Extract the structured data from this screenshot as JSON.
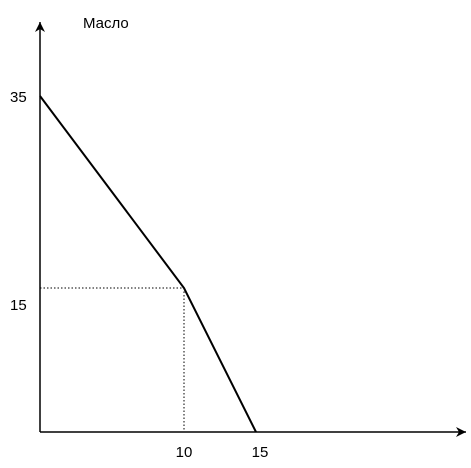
{
  "chart_data": {
    "type": "line",
    "y_axis_label": "Масло",
    "x_tick_labels": [
      "10",
      "15"
    ],
    "y_tick_labels": [
      "15",
      "35"
    ],
    "series": [
      {
        "x": [
          0,
          10,
          15
        ],
        "y": [
          35,
          15,
          0
        ]
      }
    ],
    "guides": {
      "x": 10,
      "y": 15,
      "style": "dotted"
    },
    "grid": false,
    "colors": {
      "line": "#000000",
      "axis": "#000000"
    }
  }
}
